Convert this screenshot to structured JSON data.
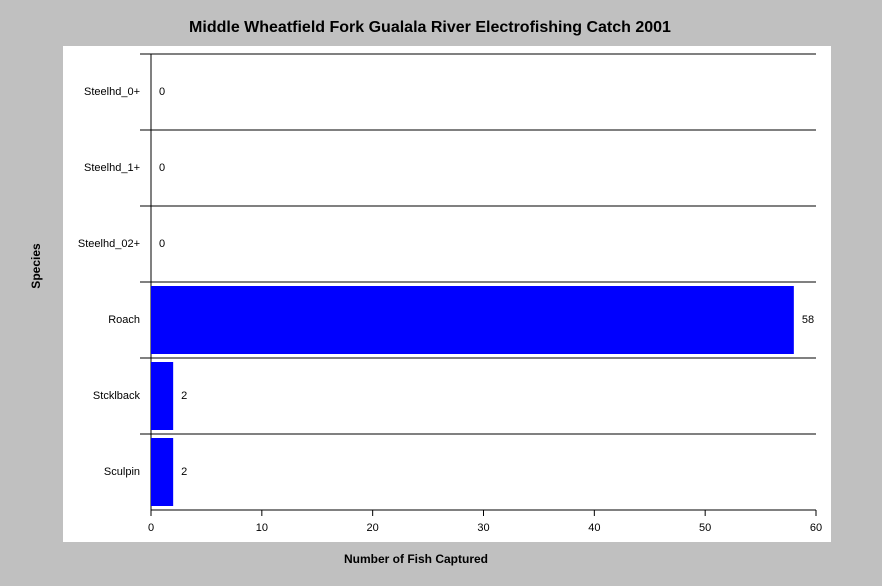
{
  "chart_data": {
    "type": "bar",
    "orientation": "horizontal",
    "title": "Middle Wheatfield Fork Gualala River Electrofishing Catch 2001",
    "x_label": "Number of Fish Captured",
    "y_label": "Species",
    "categories": [
      "Steelhd_0+",
      "Steelhd_1+",
      "Steelhd_02+",
      "Roach",
      "Stcklback",
      "Sculpin"
    ],
    "values": [
      0,
      0,
      0,
      58,
      2,
      2
    ],
    "color": "#0000ff",
    "xlim": [
      0,
      60
    ],
    "xticks": [
      0,
      10,
      20,
      30,
      40,
      50,
      60
    ]
  }
}
